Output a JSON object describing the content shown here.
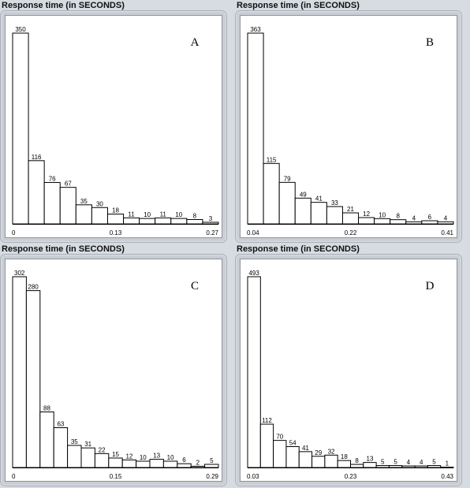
{
  "chart_data": [
    {
      "type": "bar",
      "panel_title": "Response time (in SECONDS)",
      "label": "A",
      "values": [
        350,
        116,
        76,
        67,
        35,
        30,
        18,
        11,
        10,
        11,
        10,
        8,
        3
      ],
      "x_ticks": [
        "0",
        "0.13",
        "0.27"
      ],
      "x_range": [
        0,
        0.27
      ],
      "ylim": [
        0,
        350
      ]
    },
    {
      "type": "bar",
      "panel_title": "Response time (in SECONDS)",
      "label": "B",
      "values": [
        363,
        115,
        79,
        49,
        41,
        33,
        21,
        12,
        10,
        8,
        4,
        6,
        4
      ],
      "x_ticks": [
        "0.04",
        "0.22",
        "0.41"
      ],
      "x_range": [
        0.04,
        0.41
      ],
      "ylim": [
        0,
        363
      ]
    },
    {
      "type": "bar",
      "panel_title": "Response time (in SECONDS)",
      "label": "C",
      "values": [
        302,
        280,
        88,
        63,
        35,
        31,
        22,
        15,
        12,
        10,
        13,
        10,
        6,
        2,
        5
      ],
      "x_ticks": [
        "0",
        "0.15",
        "0.29"
      ],
      "x_range": [
        0,
        0.29
      ],
      "ylim": [
        0,
        302
      ]
    },
    {
      "type": "bar",
      "panel_title": "Response time (in SECONDS)",
      "label": "D",
      "values": [
        493,
        112,
        70,
        54,
        41,
        29,
        32,
        18,
        8,
        13,
        5,
        5,
        4,
        4,
        5,
        1
      ],
      "x_ticks": [
        "0.03",
        "0.23",
        "0.43"
      ],
      "x_range": [
        0.03,
        0.43
      ],
      "ylim": [
        0,
        493
      ]
    }
  ],
  "colors": {
    "bar_fill": "#ffffff",
    "bar_stroke": "#000000",
    "background": "#d7dbe2",
    "panel_frame": "#c9cdd4"
  }
}
